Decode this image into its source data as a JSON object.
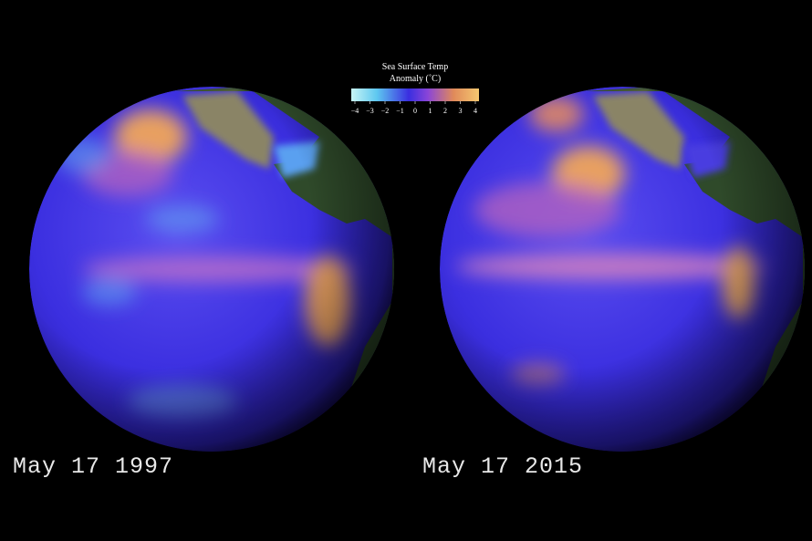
{
  "legend": {
    "title_lines": [
      "Sea Surface Temp",
      "Anomaly (˚C)"
    ],
    "range": [
      -4,
      4
    ],
    "ticks": [
      {
        "value": -4,
        "label": "−4"
      },
      {
        "value": -3,
        "label": "−3"
      },
      {
        "value": -2,
        "label": "−2"
      },
      {
        "value": -1,
        "label": "−1"
      },
      0,
      1,
      2,
      3,
      4
    ]
  },
  "panels": [
    {
      "date": "May 17 1997"
    },
    {
      "date": "May 17 2015"
    }
  ]
}
